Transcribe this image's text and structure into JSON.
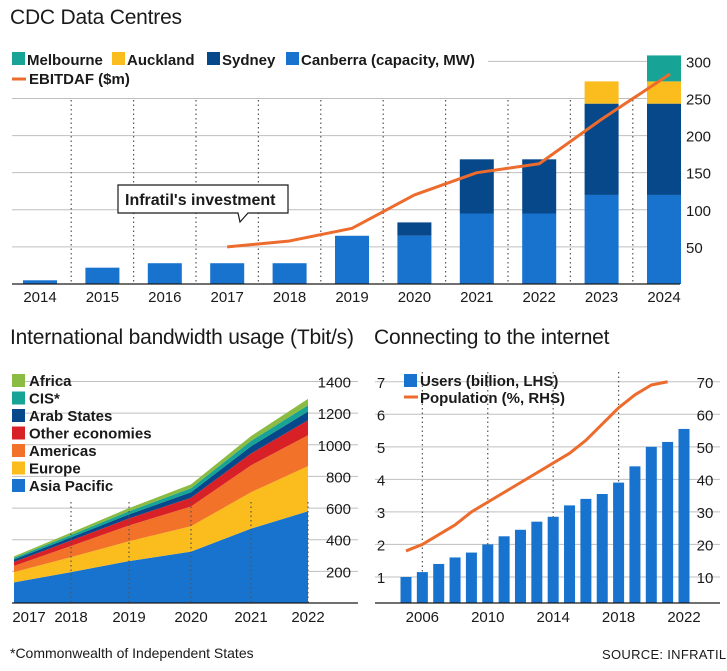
{
  "colors": {
    "melbourne": "#17a396",
    "auckland": "#fbbd1e",
    "sydney": "#06488a",
    "canberra": "#1773ce",
    "ebitdaf": "#ec6b2d",
    "africa": "#8bbb42",
    "cis": "#17a396",
    "arab_states": "#06488a",
    "other_economies": "#d82027",
    "americas": "#f2722a",
    "europe": "#fbbd1e",
    "asia_pacific": "#1773ce",
    "users": "#1773ce",
    "population": "#ec6b2d",
    "grid": "#bfbfbf"
  },
  "footnote": "*Commonwealth of Independent States",
  "source": "SOURCE: INFRATIL",
  "chart_data": [
    {
      "type": "bar",
      "title": "CDC Data Centres",
      "categories": [
        "2014",
        "2015",
        "2016",
        "2017",
        "2018",
        "2019",
        "2020",
        "2021",
        "2022",
        "2023",
        "2024"
      ],
      "stacked": true,
      "series": [
        {
          "name": "Canberra (capacity, MW)",
          "values": [
            5,
            22,
            28,
            28,
            28,
            65,
            65,
            95,
            95,
            120,
            120
          ]
        },
        {
          "name": "Sydney",
          "values": [
            0,
            0,
            0,
            0,
            0,
            0,
            18,
            73,
            73,
            123,
            123
          ]
        },
        {
          "name": "Auckland",
          "values": [
            0,
            0,
            0,
            0,
            0,
            0,
            0,
            0,
            0,
            30,
            30
          ]
        },
        {
          "name": "Melbourne",
          "values": [
            0,
            0,
            0,
            0,
            0,
            0,
            0,
            0,
            0,
            0,
            35
          ]
        }
      ],
      "line_series": {
        "name": "EBITDAF ($m)",
        "x": [
          "2017",
          "2018",
          "2019",
          "2020",
          "2021",
          "2022",
          "2023",
          "2024"
        ],
        "values": [
          50,
          58,
          75,
          120,
          150,
          162,
          222,
          283
        ]
      },
      "annotation": "Infratil's investment",
      "yticks_right": [
        50,
        100,
        150,
        200,
        250,
        300
      ],
      "ylim": [
        0,
        318
      ],
      "grid": true,
      "legend_position": "top-left"
    },
    {
      "type": "area",
      "title": "International bandwidth usage (Tbit/s)",
      "x": [
        "2017",
        "2018",
        "2019",
        "2020",
        "2021",
        "2022"
      ],
      "stacked": true,
      "series": [
        {
          "name": "Asia Pacific",
          "values": [
            130,
            195,
            265,
            325,
            470,
            580
          ]
        },
        {
          "name": "Europe",
          "values": [
            65,
            95,
            125,
            160,
            230,
            285
          ]
        },
        {
          "name": "Americas",
          "values": [
            40,
            70,
            100,
            125,
            170,
            195
          ]
        },
        {
          "name": "Other economies",
          "values": [
            25,
            35,
            45,
            55,
            75,
            95
          ]
        },
        {
          "name": "Arab States",
          "values": [
            15,
            20,
            25,
            35,
            45,
            55
          ]
        },
        {
          "name": "CIS*",
          "values": [
            10,
            15,
            20,
            25,
            35,
            40
          ]
        },
        {
          "name": "Africa",
          "values": [
            10,
            15,
            20,
            25,
            30,
            40
          ]
        }
      ],
      "yticks_right": [
        200,
        400,
        600,
        800,
        1000,
        1200,
        1400
      ],
      "ylim": [
        0,
        1460
      ],
      "grid": true,
      "legend_position": "top-left"
    },
    {
      "type": "bar",
      "title": "Connecting to the internet",
      "x": [
        2005,
        2006,
        2007,
        2008,
        2009,
        2010,
        2011,
        2012,
        2013,
        2014,
        2015,
        2016,
        2017,
        2018,
        2019,
        2020,
        2021,
        2022
      ],
      "xticks": [
        "2006",
        "2010",
        "2014",
        "2018",
        "2022"
      ],
      "series": [
        {
          "name": "Users (billion, LHS)",
          "axis": "left",
          "values": [
            1.0,
            1.15,
            1.4,
            1.6,
            1.75,
            2.0,
            2.25,
            2.45,
            2.7,
            2.85,
            3.2,
            3.4,
            3.55,
            3.9,
            4.4,
            5.0,
            5.15,
            5.55
          ]
        },
        {
          "name": "Population (%, RHS)",
          "axis": "right",
          "type": "line",
          "values": [
            null,
            18,
            21,
            26,
            29,
            33,
            36,
            40,
            42,
            45,
            48,
            51,
            54,
            58,
            64,
            68,
            70,
            70
          ]
        }
      ],
      "line_x": [
        2005.5,
        2006.5,
        2007.5,
        2008.5,
        2009.5,
        2010.5,
        2011.5,
        2012.5,
        2013.5,
        2014.5,
        2015.5,
        2016.5,
        2017.5,
        2018.5,
        2019.5,
        2020.5,
        2021.5,
        2022.5
      ],
      "line_values": [
        18,
        20,
        23,
        26,
        30,
        33,
        36,
        39,
        42,
        45,
        48,
        52,
        57,
        62,
        66,
        69,
        70,
        70
      ],
      "yticks_left": [
        1,
        2,
        3,
        4,
        5,
        6,
        7
      ],
      "ylim_left": [
        0.2,
        7.3
      ],
      "yticks_right": [
        10,
        20,
        30,
        40,
        50,
        60,
        70
      ],
      "ylim_right": [
        2,
        73
      ],
      "grid": true,
      "legend_position": "top-left"
    }
  ]
}
